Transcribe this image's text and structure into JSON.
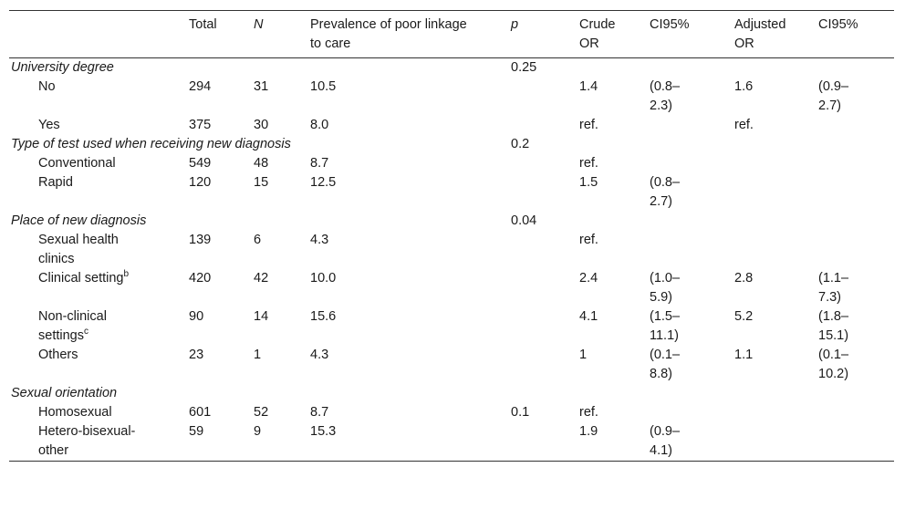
{
  "table": {
    "header": [
      "Total",
      "N",
      "Prevalence of poor linkage to care",
      "p",
      "Crude OR",
      "CI95%",
      "Adjusted OR",
      "CI95%"
    ],
    "groups": [
      {
        "title": "University degree",
        "p": "0.25",
        "rows": [
          [
            {
              "text": "No"
            },
            "294",
            "31",
            "10.5",
            null,
            "1.4",
            "(0.8–2.3)",
            "1.6",
            "(0.9–2.7)"
          ],
          [
            {
              "text": "Yes"
            },
            "375",
            "30",
            "8.0",
            null,
            "ref.",
            null,
            "ref.",
            null
          ]
        ]
      },
      {
        "title": "Type of test used when receiving new diagnosis",
        "p": "0.2",
        "rows": [
          [
            {
              "text": "Conventional"
            },
            "549",
            "48",
            "8.7",
            null,
            "ref.",
            null,
            null,
            null
          ],
          [
            {
              "text": "Rapid"
            },
            "120",
            "15",
            "12.5",
            null,
            "1.5",
            "(0.8–2.7)",
            null,
            null
          ]
        ]
      },
      {
        "title": "Place of new diagnosis",
        "p": "0.04",
        "rows": [
          [
            {
              "text": "Sexual health clinics"
            },
            "139",
            "6",
            "4.3",
            null,
            "ref.",
            null,
            null,
            null
          ],
          [
            {
              "text": "Clinical setting",
              "sup": "b"
            },
            "420",
            "42",
            "10.0",
            null,
            "2.4",
            "(1.0–5.9)",
            "2.8",
            "(1.1–7.3)"
          ],
          [
            {
              "text": "Non-clinical settings",
              "sup": "c"
            },
            "90",
            "14",
            "15.6",
            null,
            "4.1",
            "(1.5–11.1)",
            "5.2",
            "(1.8–15.1)"
          ],
          [
            {
              "text": "Others"
            },
            "23",
            "1",
            "4.3",
            null,
            "1",
            "(0.1–8.8)",
            "1.1",
            "(0.1–10.2)"
          ]
        ]
      },
      {
        "title": "Sexual orientation",
        "p": null,
        "rows": [
          [
            {
              "text": "Homosexual"
            },
            "601",
            "52",
            "8.7",
            "0.1",
            "ref.",
            null,
            null,
            null
          ],
          [
            {
              "text": "Hetero-bisexual-other"
            },
            "59",
            "9",
            "15.3",
            null,
            "1.9",
            "(0.9–4.1)",
            null,
            null
          ]
        ]
      }
    ]
  }
}
